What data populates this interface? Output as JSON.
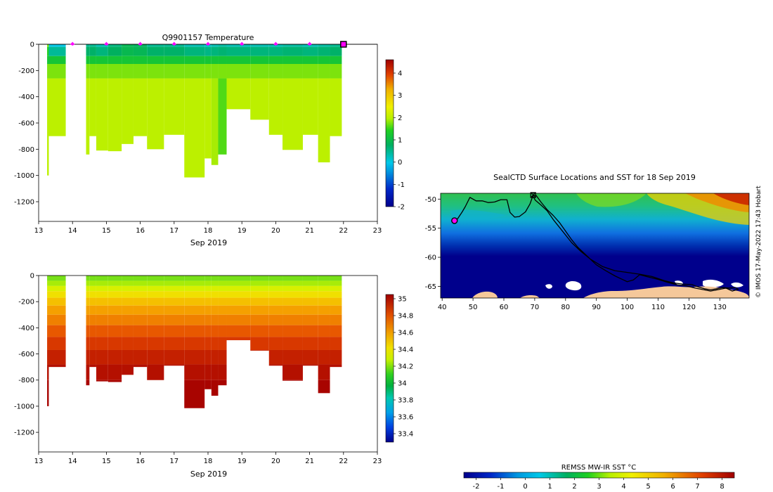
{
  "chart_data": [
    {
      "type": "heatmap",
      "title": "Q9901157  Temperature",
      "xlabel": "Sep 2019",
      "x_ticks": [
        "13",
        "14",
        "15",
        "16",
        "17",
        "18",
        "19",
        "20",
        "21",
        "22",
        "23"
      ],
      "y_ticks": [
        "0",
        "-200",
        "-400",
        "-600",
        "-800",
        "-1000",
        "-1200"
      ],
      "xlim": [
        13,
        23
      ],
      "ylim": [
        -1350,
        0
      ],
      "colorbar": {
        "min": -2,
        "max": 4.6,
        "ticks": [
          "-2",
          "-1",
          "0",
          "1",
          "2",
          "3",
          "4"
        ]
      },
      "surface_markers_x": [
        14,
        15,
        16,
        17,
        18,
        19,
        20,
        21
      ],
      "current_position_x": 22,
      "profiles": [
        {
          "x0": 13.25,
          "x1": 13.3,
          "depth": 1000,
          "t_surf": 1.8,
          "t_deep": 2.0
        },
        {
          "x0": 13.3,
          "x1": 13.8,
          "depth": 700,
          "t_surf": 0.0,
          "t_deep": 2.0
        },
        {
          "x0": 14.4,
          "x1": 14.5,
          "depth": 840,
          "t_surf": 0.5,
          "t_deep": 2.0
        },
        {
          "x0": 14.5,
          "x1": 14.7,
          "depth": 700,
          "t_surf": 0.5,
          "t_deep": 2.0
        },
        {
          "x0": 14.7,
          "x1": 15.05,
          "depth": 810,
          "t_surf": 0.3,
          "t_deep": 2.0
        },
        {
          "x0": 15.05,
          "x1": 15.45,
          "depth": 815,
          "t_surf": 0.6,
          "t_deep": 2.0
        },
        {
          "x0": 15.45,
          "x1": 15.8,
          "depth": 760,
          "t_surf": 0.9,
          "t_deep": 2.0
        },
        {
          "x0": 15.8,
          "x1": 16.2,
          "depth": 700,
          "t_surf": 0.8,
          "t_deep": 2.0
        },
        {
          "x0": 16.2,
          "x1": 16.7,
          "depth": 800,
          "t_surf": 0.5,
          "t_deep": 2.0
        },
        {
          "x0": 16.7,
          "x1": 17.3,
          "depth": 690,
          "t_surf": 0.5,
          "t_deep": 2.0
        },
        {
          "x0": 17.3,
          "x1": 17.9,
          "depth": 1015,
          "t_surf": 0.3,
          "t_deep": 2.0
        },
        {
          "x0": 17.9,
          "x1": 18.1,
          "depth": 870,
          "t_surf": 0.2,
          "t_deep": 2.0
        },
        {
          "x0": 18.1,
          "x1": 18.3,
          "depth": 920,
          "t_surf": 0.3,
          "t_deep": 1.9
        },
        {
          "x0": 18.3,
          "x1": 18.55,
          "depth": 840,
          "t_surf": 0.4,
          "t_deep": 1.6
        },
        {
          "x0": 18.55,
          "x1": 19.25,
          "depth": 495,
          "t_surf": 0.3,
          "t_deep": 2.0
        },
        {
          "x0": 19.25,
          "x1": 19.8,
          "depth": 575,
          "t_surf": 0.3,
          "t_deep": 2.0
        },
        {
          "x0": 19.8,
          "x1": 20.2,
          "depth": 690,
          "t_surf": 0.3,
          "t_deep": 2.0
        },
        {
          "x0": 20.2,
          "x1": 20.8,
          "depth": 805,
          "t_surf": 0.4,
          "t_deep": 2.0
        },
        {
          "x0": 20.8,
          "x1": 21.25,
          "depth": 690,
          "t_surf": 0.3,
          "t_deep": 2.0
        },
        {
          "x0": 21.25,
          "x1": 21.6,
          "depth": 900,
          "t_surf": 0.4,
          "t_deep": 2.0
        },
        {
          "x0": 21.6,
          "x1": 21.95,
          "depth": 700,
          "t_surf": 0.5,
          "t_deep": 2.0
        }
      ]
    },
    {
      "type": "heatmap",
      "title": "",
      "xlabel": "Sep 2019",
      "x_ticks": [
        "13",
        "14",
        "15",
        "16",
        "17",
        "18",
        "19",
        "20",
        "21",
        "22",
        "23"
      ],
      "y_ticks": [
        "0",
        "-200",
        "-400",
        "-600",
        "-800",
        "-1000",
        "-1200"
      ],
      "xlim": [
        13,
        23
      ],
      "ylim": [
        -1350,
        0
      ],
      "colorbar": {
        "min": 33.3,
        "max": 35.05,
        "ticks": [
          "33.4",
          "33.6",
          "33.8",
          "34",
          "34.2",
          "34.4",
          "34.6",
          "34.8",
          "35"
        ]
      },
      "profiles_same_as_temperature": true
    },
    {
      "type": "heatmap",
      "title": "SealCTD Surface Locations and SST for 18 Sep 2019",
      "x_ticks": [
        "40",
        "50",
        "60",
        "70",
        "80",
        "90",
        "100",
        "110",
        "120",
        "130"
      ],
      "y_ticks": [
        "-50",
        "-55",
        "-60",
        "-65"
      ],
      "xlim": [
        39.5,
        139.5
      ],
      "ylim": [
        -67,
        -49
      ],
      "colorbar": {
        "label": "REMSS MW-IR SST °C",
        "min": -2.5,
        "max": 8.5,
        "ticks": [
          "-2",
          "-1",
          "0",
          "1",
          "2",
          "3",
          "4",
          "5",
          "6",
          "7",
          "8"
        ]
      },
      "credit": "© IMOS 17-May-2022 17:43 Hobart",
      "track_lonlat": [
        [
          44,
          -53.7
        ],
        [
          45,
          -53.4
        ],
        [
          46.5,
          -52.2
        ],
        [
          47.5,
          -51.3
        ],
        [
          49,
          -49.7
        ],
        [
          51,
          -50.3
        ],
        [
          53,
          -50.3
        ],
        [
          55,
          -50.6
        ],
        [
          57,
          -50.5
        ],
        [
          59,
          -50.1
        ],
        [
          61,
          -50.1
        ],
        [
          61.5,
          -51.2
        ],
        [
          62,
          -52.3
        ],
        [
          63.5,
          -53.1
        ],
        [
          65,
          -53.0
        ],
        [
          67,
          -52.2
        ],
        [
          68.5,
          -50.8
        ],
        [
          69.5,
          -49.3
        ],
        [
          70.5,
          -49.4
        ],
        [
          72,
          -50.5
        ],
        [
          74,
          -51.8
        ],
        [
          76,
          -52.8
        ],
        [
          78,
          -54.0
        ],
        [
          80,
          -55.5
        ],
        [
          82,
          -57.0
        ],
        [
          84,
          -58.3
        ],
        [
          87,
          -59.8
        ],
        [
          90,
          -61.3
        ],
        [
          93,
          -62.3
        ],
        [
          96,
          -63.2
        ],
        [
          98,
          -63.7
        ],
        [
          100,
          -64.2
        ],
        [
          102,
          -63.9
        ],
        [
          104,
          -63.0
        ],
        [
          107,
          -63.4
        ],
        [
          110,
          -63.8
        ],
        [
          113,
          -64.3
        ],
        [
          116,
          -64.7
        ],
        [
          119,
          -64.9
        ],
        [
          122,
          -65.3
        ],
        [
          125,
          -65.6
        ],
        [
          127,
          -65.8
        ],
        [
          130,
          -65.5
        ],
        [
          132,
          -65.3
        ],
        [
          134,
          -65.8
        ],
        [
          136,
          -65.5
        ],
        [
          135,
          -65.2
        ],
        [
          133,
          -65.3
        ],
        [
          131,
          -65.2
        ],
        [
          129,
          -65.4
        ],
        [
          127,
          -65.6
        ],
        [
          125,
          -65.4
        ],
        [
          123,
          -65.1
        ],
        [
          121,
          -64.7
        ],
        [
          118,
          -64.6
        ],
        [
          115,
          -64.4
        ],
        [
          112,
          -64.0
        ],
        [
          108,
          -63.3
        ],
        [
          104,
          -62.9
        ],
        [
          100,
          -62.6
        ],
        [
          96,
          -62.3
        ],
        [
          92,
          -61.6
        ],
        [
          88,
          -60.3
        ],
        [
          85,
          -59.0
        ],
        [
          82,
          -57.5
        ],
        [
          79,
          -55.5
        ],
        [
          76,
          -53.5
        ],
        [
          74,
          -52.0
        ],
        [
          72,
          -51.0
        ],
        [
          70.2,
          -50.2
        ],
        [
          69.3,
          -49.4
        ]
      ],
      "start_lonlat": [
        44,
        -53.7
      ],
      "end_lonlat": [
        69.5,
        -49.3
      ]
    }
  ]
}
